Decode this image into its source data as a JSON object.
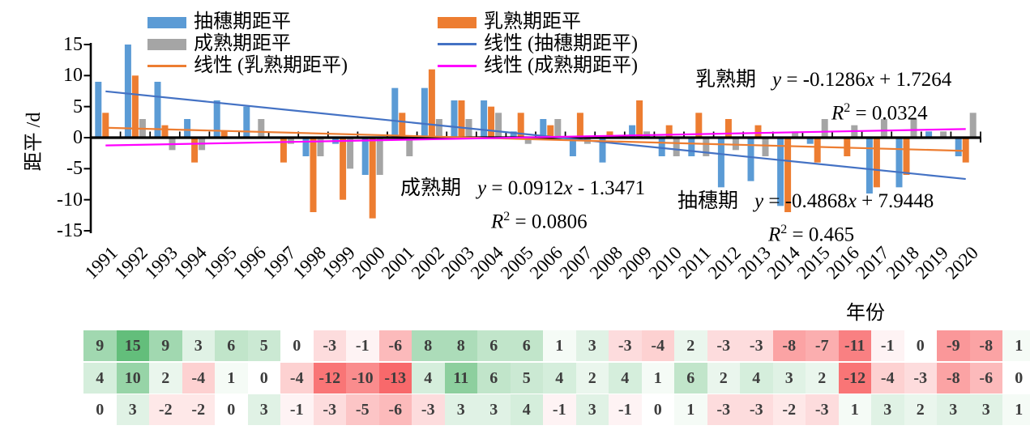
{
  "figure_title": "",
  "axes": {
    "y": {
      "title": "距平 /d",
      "ticks": [
        15,
        10,
        5,
        0,
        -5,
        -10,
        -15
      ],
      "ylim": [
        -15,
        15
      ]
    },
    "x": {
      "title": "年份",
      "categories": [
        "1991",
        "1992",
        "1993",
        "1994",
        "1995",
        "1996",
        "1997",
        "1998",
        "1999",
        "2000",
        "2001",
        "2002",
        "2003",
        "2004",
        "2005",
        "2006",
        "2007",
        "2008",
        "2009",
        "2010",
        "2011",
        "2012",
        "2013",
        "2014",
        "2015",
        "2016",
        "2017",
        "2018",
        "2019",
        "2020"
      ]
    }
  },
  "legend": {
    "entries": [
      {
        "label": "抽穗期距平",
        "swatch": "box",
        "color": "#5B9BD5"
      },
      {
        "label": "乳熟期距平",
        "swatch": "box",
        "color": "#ED7D31"
      },
      {
        "label": "成熟期距平",
        "swatch": "box",
        "color": "#A5A5A5"
      },
      {
        "label": "线性 (抽穗期距平)",
        "swatch": "line",
        "color": "#4472C4"
      },
      {
        "label": "线性 (乳熟期距平)",
        "swatch": "line",
        "color": "#ED7D31"
      },
      {
        "label": "线性 (成熟期距平)",
        "swatch": "line",
        "color": "#FF00FF"
      }
    ]
  },
  "chart_data": {
    "type": "bar",
    "title": "",
    "xlabel": "年份",
    "ylabel": "距平 /d",
    "ylim": [
      -15,
      15
    ],
    "grid": false,
    "legend_position": "top",
    "categories": [
      1991,
      1992,
      1993,
      1994,
      1995,
      1996,
      1997,
      1998,
      1999,
      2000,
      2001,
      2002,
      2003,
      2004,
      2005,
      2006,
      2007,
      2008,
      2009,
      2010,
      2011,
      2012,
      2013,
      2014,
      2015,
      2016,
      2017,
      2018,
      2019,
      2020
    ],
    "series": [
      {
        "name": "抽穗期距平",
        "key": "heading",
        "color": "#5B9BD5",
        "values": [
          9,
          15,
          9,
          3,
          6,
          5,
          0,
          -3,
          -1,
          -6,
          8,
          8,
          6,
          6,
          1,
          3,
          -3,
          -4,
          2,
          -3,
          -3,
          -8,
          -7,
          -11,
          -1,
          0,
          -9,
          -8,
          1,
          -3
        ]
      },
      {
        "name": "乳熟期距平",
        "key": "milk",
        "color": "#ED7D31",
        "values": [
          4,
          10,
          2,
          -4,
          1,
          0,
          -4,
          -12,
          -10,
          -13,
          4,
          11,
          6,
          5,
          4,
          2,
          4,
          1,
          6,
          2,
          4,
          3,
          2,
          -12,
          -4,
          -3,
          -8,
          -6,
          0,
          -4
        ]
      },
      {
        "name": "成熟期距平",
        "key": "mature",
        "color": "#A5A5A5",
        "values": [
          0,
          3,
          -2,
          -2,
          0,
          3,
          -1,
          -3,
          -5,
          -6,
          -3,
          3,
          3,
          4,
          -1,
          3,
          -1,
          0,
          1,
          -3,
          -3,
          -2,
          -3,
          1,
          3,
          2,
          3,
          3,
          1,
          4
        ]
      }
    ],
    "trendlines": [
      {
        "name": "线性 (抽穗期距平)",
        "key": "heading",
        "color": "#4472C4",
        "slope": -0.4868,
        "intercept": 7.9448,
        "r2": 0.465
      },
      {
        "name": "线性 (乳熟期距平)",
        "key": "milk",
        "color": "#ED7D31",
        "slope": -0.1286,
        "intercept": 1.7264,
        "r2": 0.0324
      },
      {
        "name": "线性 (成熟期距平)",
        "key": "mature",
        "color": "#FF00FF",
        "slope": 0.0912,
        "intercept": -1.3471,
        "r2": 0.0806
      }
    ]
  },
  "annotations": {
    "milk": {
      "phase": "乳熟期",
      "var_y": "y",
      "eq": " = -0.1286",
      "var_x": "x",
      "tail": " + 1.7264",
      "r_var": "R",
      "r_exp": "2",
      "r_val": " = 0.0324"
    },
    "mature": {
      "phase": "成熟期",
      "var_y": "y",
      "eq": " = 0.0912",
      "var_x": "x",
      "tail": " - 1.3471",
      "r_var": "R",
      "r_exp": "2",
      "r_val": " = 0.0806"
    },
    "heading": {
      "phase": "抽穗期",
      "var_y": "y",
      "eq": " = -0.4868",
      "var_x": "x",
      "tail": " + 7.9448",
      "r_var": "R",
      "r_exp": "2",
      "r_val": " = 0.465"
    }
  },
  "heatmap": {
    "note_visible_columns": 29,
    "years": [
      1991,
      1992,
      1993,
      1994,
      1995,
      1996,
      1997,
      1998,
      1999,
      2000,
      2001,
      2002,
      2003,
      2004,
      2005,
      2006,
      2007,
      2008,
      2009,
      2010,
      2011,
      2012,
      2013,
      2014,
      2015,
      2016,
      2017,
      2018,
      2019
    ],
    "rows": [
      {
        "name": "抽穗期距平",
        "values": [
          9,
          15,
          9,
          3,
          6,
          5,
          0,
          -3,
          -1,
          -6,
          8,
          8,
          6,
          6,
          1,
          3,
          -3,
          -4,
          2,
          -3,
          -3,
          -8,
          -7,
          -11,
          -1,
          0,
          -9,
          -8,
          1
        ]
      },
      {
        "name": "乳熟期距平",
        "values": [
          4,
          10,
          2,
          -4,
          1,
          0,
          -4,
          -12,
          -10,
          -13,
          4,
          11,
          6,
          5,
          4,
          2,
          4,
          1,
          6,
          2,
          4,
          3,
          2,
          -12,
          -4,
          -3,
          -8,
          -6,
          0
        ]
      },
      {
        "name": "成熟期距平",
        "values": [
          0,
          3,
          -2,
          -2,
          0,
          3,
          -1,
          -3,
          -5,
          -6,
          -3,
          3,
          3,
          4,
          -1,
          3,
          -1,
          0,
          1,
          -3,
          -3,
          -2,
          -3,
          1,
          3,
          2,
          3,
          3,
          1
        ]
      }
    ],
    "color_scale": {
      "positive_max": "#63BE7B",
      "negative_max": "#F8696B",
      "mid": "#FFFFFF",
      "max_value": 15,
      "min_value": -13
    }
  }
}
